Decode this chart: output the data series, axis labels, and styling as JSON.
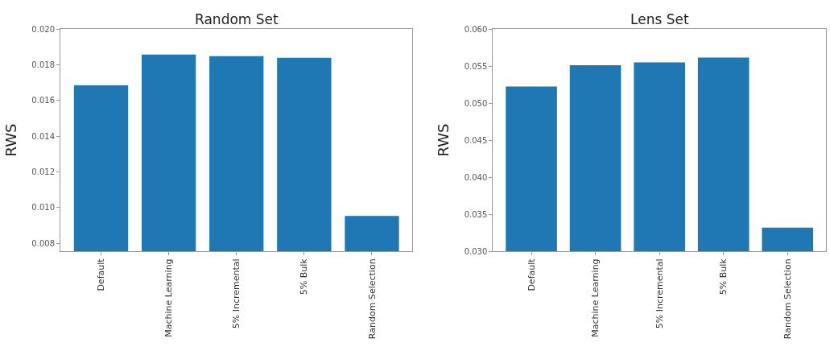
{
  "chart_data": [
    {
      "type": "bar",
      "title": "Random Set",
      "ylabel": "RWS",
      "categories": [
        "Default",
        "Machine Learning",
        "5% Incremental",
        "5% Bulk",
        "Random Selection"
      ],
      "values": [
        0.01684,
        0.01857,
        0.01848,
        0.01839,
        0.00952
      ],
      "color": "#1f77b4",
      "ylim": [
        0.00755,
        0.02
      ],
      "yticks": [
        {
          "value": 0.008,
          "label": "0.008"
        },
        {
          "value": 0.01,
          "label": "0.010"
        },
        {
          "value": 0.012,
          "label": "0.012"
        },
        {
          "value": 0.014,
          "label": "0.014"
        },
        {
          "value": 0.016,
          "label": "0.016"
        },
        {
          "value": 0.018,
          "label": "0.018"
        },
        {
          "value": 0.02,
          "label": "0.020"
        }
      ]
    },
    {
      "type": "bar",
      "title": "Lens Set",
      "ylabel": "RWS",
      "categories": [
        "Default",
        "Machine Learning",
        "5% Incremental",
        "5% Bulk",
        "Random Selection"
      ],
      "values": [
        0.05223,
        0.05512,
        0.05548,
        0.05613,
        0.03318
      ],
      "color": "#1f77b4",
      "ylim": [
        0.03,
        0.06
      ],
      "yticks": [
        {
          "value": 0.03,
          "label": "0.030"
        },
        {
          "value": 0.035,
          "label": "0.035"
        },
        {
          "value": 0.04,
          "label": "0.040"
        },
        {
          "value": 0.045,
          "label": "0.045"
        },
        {
          "value": 0.05,
          "label": "0.050"
        },
        {
          "value": 0.055,
          "label": "0.055"
        },
        {
          "value": 0.06,
          "label": "0.060"
        }
      ]
    }
  ]
}
